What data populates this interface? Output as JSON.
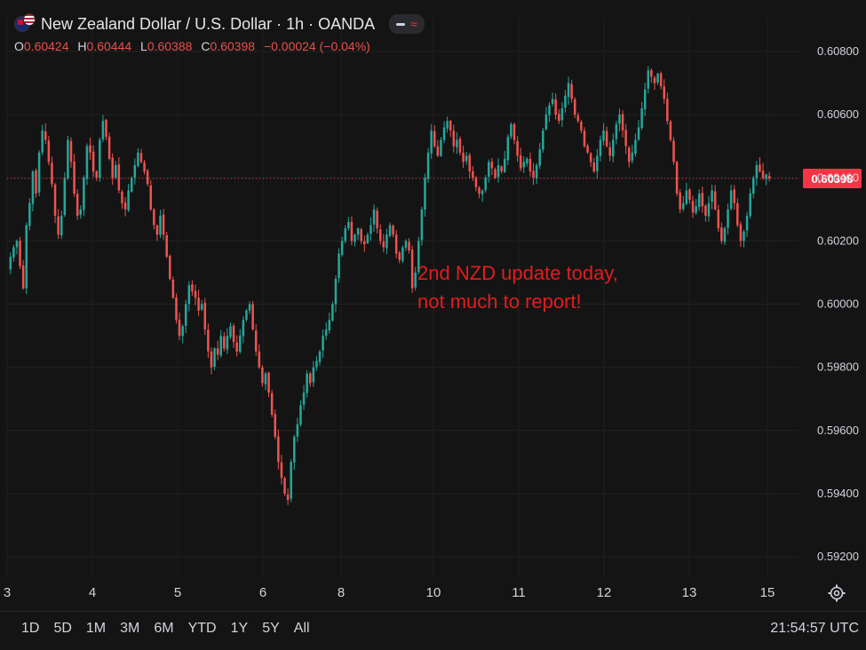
{
  "header": {
    "title": "New Zealand Dollar / U.S. Dollar · 1h · OANDA",
    "ohlc": {
      "o_label": "O",
      "o_value": "0.60424",
      "h_label": "H",
      "h_value": "0.60444",
      "l_label": "L",
      "l_value": "0.60388",
      "c_label": "C",
      "c_value": "0.60398",
      "change": "−0.00024 (−0.04%)"
    },
    "icons": [
      "nz-us-flag-icon",
      "dash-icon",
      "wave-icon"
    ]
  },
  "annotation": {
    "line1": "2nd NZD update today,",
    "line2": "not much to report!"
  },
  "range_buttons": [
    "1D",
    "5D",
    "1M",
    "3M",
    "6M",
    "YTD",
    "1Y",
    "5Y",
    "All"
  ],
  "clock": "21:54:57 UTC",
  "colors": {
    "background": "#141414",
    "up": "#26a69a",
    "down": "#ef5350",
    "price_tag": "#f23645",
    "annotation": "#e21d1d"
  },
  "chart_data": {
    "type": "candlestick",
    "title": "New Zealand Dollar / U.S. Dollar · 1h · OANDA",
    "x_ticks": [
      "3",
      "4",
      "5",
      "6",
      "8",
      "10",
      "11",
      "12",
      "13",
      "15"
    ],
    "y_ticks": [
      "0.60800",
      "0.60600",
      "0.60400",
      "0.60200",
      "0.60000",
      "0.59800",
      "0.59600",
      "0.59400",
      "0.59200"
    ],
    "ylim": [
      0.5915,
      0.6088
    ],
    "last_price": 0.60398,
    "last_price_label": "0.60398",
    "grid": true,
    "closes": [
      0.6015,
      0.6018,
      0.602,
      0.6012,
      0.6005,
      0.6025,
      0.6032,
      0.6042,
      0.6035,
      0.6048,
      0.6055,
      0.6052,
      0.6045,
      0.6038,
      0.6028,
      0.6022,
      0.6028,
      0.604,
      0.6052,
      0.6045,
      0.6035,
      0.6028,
      0.603,
      0.604,
      0.605,
      0.6048,
      0.6042,
      0.604,
      0.6052,
      0.6058,
      0.6053,
      0.6046,
      0.604,
      0.6044,
      0.6036,
      0.6032,
      0.603,
      0.6036,
      0.604,
      0.6044,
      0.6048,
      0.6045,
      0.6042,
      0.6038,
      0.603,
      0.6025,
      0.6022,
      0.6028,
      0.6022,
      0.6015,
      0.6008,
      0.6002,
      0.5995,
      0.599,
      0.5993,
      0.6,
      0.6006,
      0.6004,
      0.6002,
      0.5998,
      0.6,
      0.5992,
      0.5985,
      0.598,
      0.5986,
      0.5984,
      0.599,
      0.5986,
      0.599,
      0.5993,
      0.5988,
      0.5985,
      0.599,
      0.5995,
      0.5998,
      0.6,
      0.5992,
      0.5985,
      0.598,
      0.5975,
      0.5978,
      0.5972,
      0.5965,
      0.5958,
      0.595,
      0.5945,
      0.594,
      0.5938,
      0.595,
      0.5958,
      0.5962,
      0.5968,
      0.5972,
      0.5978,
      0.5975,
      0.598,
      0.5982,
      0.5985,
      0.599,
      0.5992,
      0.5995,
      0.6,
      0.6008,
      0.6016,
      0.602,
      0.6024,
      0.6026,
      0.602,
      0.6022,
      0.6024,
      0.602,
      0.6019,
      0.6022,
      0.6025,
      0.603,
      0.6024,
      0.602,
      0.6018,
      0.6022,
      0.6025,
      0.6022,
      0.6016,
      0.6014,
      0.6018,
      0.602,
      0.6017,
      0.6005,
      0.601,
      0.602,
      0.603,
      0.604,
      0.6048,
      0.6055,
      0.605,
      0.6047,
      0.6052,
      0.6056,
      0.6058,
      0.6055,
      0.605,
      0.6052,
      0.6048,
      0.6045,
      0.6047,
      0.6042,
      0.604,
      0.6037,
      0.6035,
      0.6036,
      0.604,
      0.6045,
      0.6043,
      0.604,
      0.6044,
      0.6042,
      0.6046,
      0.6053,
      0.6057,
      0.6052,
      0.6047,
      0.6043,
      0.6045,
      0.6046,
      0.6042,
      0.604,
      0.6044,
      0.6049,
      0.6055,
      0.606,
      0.6063,
      0.6065,
      0.606,
      0.6058,
      0.6062,
      0.6066,
      0.607,
      0.6065,
      0.606,
      0.6058,
      0.6055,
      0.605,
      0.6048,
      0.6045,
      0.6042,
      0.6047,
      0.6052,
      0.6055,
      0.605,
      0.6047,
      0.6052,
      0.6057,
      0.606,
      0.6055,
      0.605,
      0.6045,
      0.6048,
      0.6052,
      0.6056,
      0.6062,
      0.6068,
      0.6074,
      0.6072,
      0.607,
      0.6073,
      0.6069,
      0.6065,
      0.6058,
      0.6052,
      0.6045,
      0.6035,
      0.603,
      0.6032,
      0.6036,
      0.6033,
      0.6029,
      0.6031,
      0.6035,
      0.6031,
      0.6028,
      0.6032,
      0.6036,
      0.603,
      0.6024,
      0.602,
      0.6024,
      0.603,
      0.6036,
      0.6032,
      0.6025,
      0.602,
      0.6023,
      0.6028,
      0.6035,
      0.604,
      0.6044,
      0.6042,
      0.604,
      0.6041,
      0.60398
    ]
  }
}
